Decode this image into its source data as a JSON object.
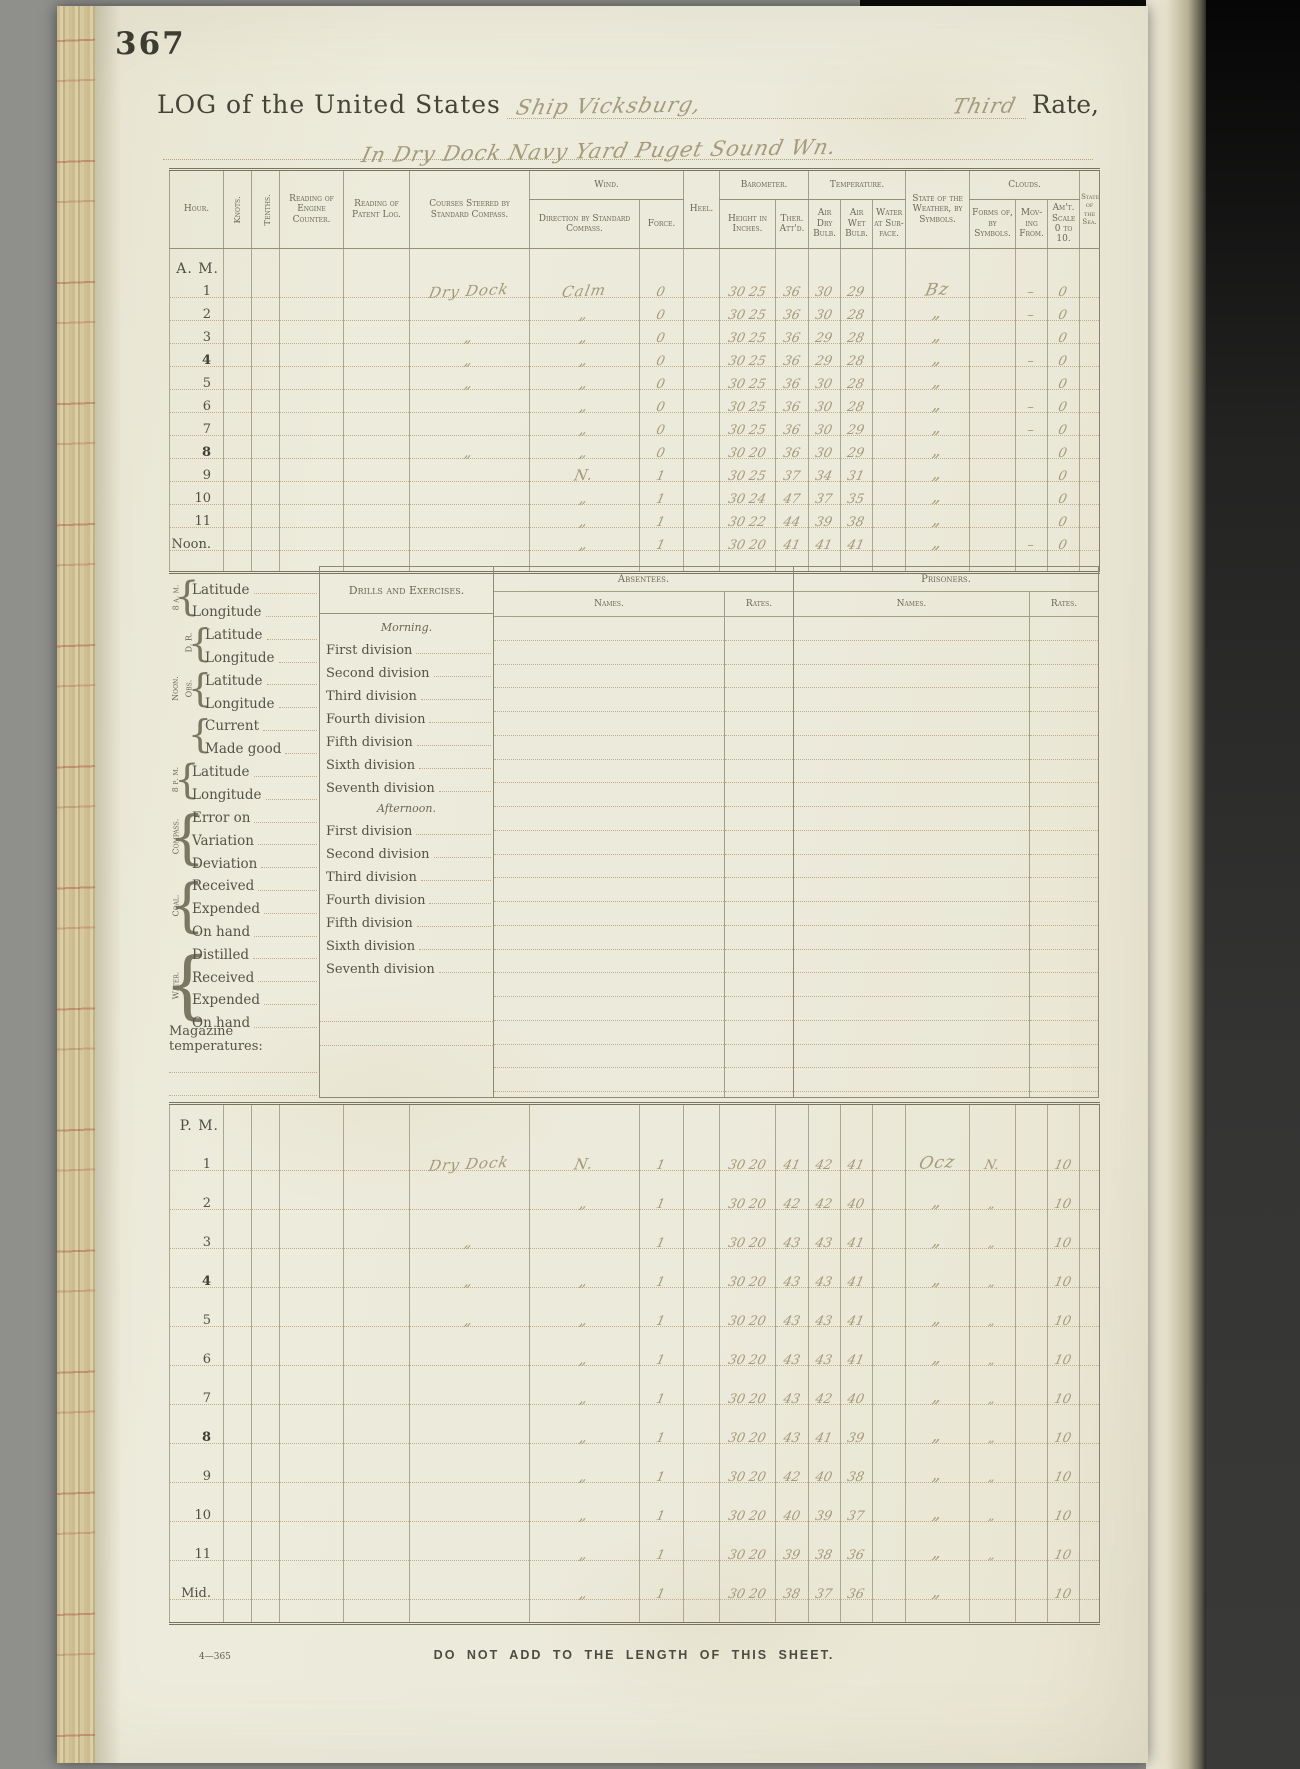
{
  "page": {
    "number": "367"
  },
  "title": {
    "prefix": "LOG of the United States",
    "ship": "Ship Vicksburg,",
    "rate": "Third",
    "suffix": "Rate,",
    "location": "In Dry Dock Navy Yard Puget Sound Wn."
  },
  "columns": {
    "hour": "Hour.",
    "knots": "Knots.",
    "tenths": "Tenths.",
    "engine": "Reading of Engine Counter.",
    "patent": "Reading of Patent Log.",
    "courses": "Courses Steered by Standard Compass.",
    "wind": "Wind.",
    "direction": "Direction by Standard Compass.",
    "force": "Force.",
    "heel": "Heel.",
    "barometer": "Barometer.",
    "height": "Height in Inches.",
    "ther": "Ther. Att'd.",
    "temperature": "Temperature.",
    "dry": "Air Dry Bulb.",
    "wet": "Air Wet Bulb.",
    "water": "Water at Sur-face.",
    "weather": "State of the Weather, by Symbols.",
    "clouds": "Clouds.",
    "forms": "Forms of, by Symbols.",
    "moving": "Mov-ing From.",
    "amount": "Am't. Scale 0 to 10.",
    "sea": "State of the Sea."
  },
  "am": {
    "rows": [
      {
        "type": "label",
        "hour": "A. M."
      },
      {
        "hour": "1",
        "course": "Dry Dock",
        "direction": "Calm",
        "force": "0",
        "bar_height": "30 25",
        "bar_ther": "36",
        "t_dry": "30",
        "t_wet": "29",
        "weather": "Bz",
        "cloud_moving": "–",
        "cloud_amt": "0"
      },
      {
        "hour": "2",
        "direction": "„",
        "force": "0",
        "bar_height": "30 25",
        "bar_ther": "36",
        "t_dry": "30",
        "t_wet": "28",
        "weather": "„",
        "cloud_moving": "–",
        "cloud_amt": "0"
      },
      {
        "hour": "3",
        "course": "„",
        "direction": "„",
        "force": "0",
        "bar_height": "30 25",
        "bar_ther": "36",
        "t_dry": "29",
        "t_wet": "28",
        "weather": "„",
        "cloud_amt": "0"
      },
      {
        "hour": "4",
        "hb": true,
        "course": "„",
        "direction": "„",
        "force": "0",
        "bar_height": "30 25",
        "bar_ther": "36",
        "t_dry": "29",
        "t_wet": "28",
        "weather": "„",
        "cloud_moving": "–",
        "cloud_amt": "0"
      },
      {
        "hour": "5",
        "course": "„",
        "direction": "„",
        "force": "0",
        "bar_height": "30 25",
        "bar_ther": "36",
        "t_dry": "30",
        "t_wet": "28",
        "weather": "„",
        "cloud_amt": "0"
      },
      {
        "hour": "6",
        "direction": "„",
        "force": "0",
        "bar_height": "30 25",
        "bar_ther": "36",
        "t_dry": "30",
        "t_wet": "28",
        "weather": "„",
        "cloud_moving": "–",
        "cloud_amt": "0"
      },
      {
        "hour": "7",
        "direction": "„",
        "force": "0",
        "bar_height": "30 25",
        "bar_ther": "36",
        "t_dry": "30",
        "t_wet": "29",
        "weather": "„",
        "cloud_moving": "–",
        "cloud_amt": "0"
      },
      {
        "hour": "8",
        "hb": true,
        "course": "„",
        "direction": "„",
        "force": "0",
        "bar_height": "30 20",
        "bar_ther": "36",
        "t_dry": "30",
        "t_wet": "29",
        "weather": "„",
        "cloud_amt": "0"
      },
      {
        "hour": "9",
        "direction": "N.",
        "force": "1",
        "bar_height": "30 25",
        "bar_ther": "37",
        "t_dry": "34",
        "t_wet": "31",
        "weather": "„",
        "cloud_amt": "0"
      },
      {
        "hour": "10",
        "direction": "„",
        "force": "1",
        "bar_height": "30 24",
        "bar_ther": "47",
        "t_dry": "37",
        "t_wet": "35",
        "weather": "„",
        "cloud_amt": "0"
      },
      {
        "hour": "11",
        "direction": "„",
        "force": "1",
        "bar_height": "30 22",
        "bar_ther": "44",
        "t_dry": "39",
        "t_wet": "38",
        "weather": "„",
        "cloud_amt": "0"
      },
      {
        "hour": "Noon.",
        "direction": "„",
        "force": "1",
        "bar_height": "30 20",
        "bar_ther": "41",
        "t_dry": "41",
        "t_wet": "41",
        "weather": "„",
        "cloud_moving": "–",
        "cloud_amt": "0"
      },
      {
        "type": "blank"
      }
    ]
  },
  "pm": {
    "rows": [
      {
        "type": "label",
        "hour": "P. M."
      },
      {
        "hour": "1",
        "course": "Dry Dock",
        "direction": "N.",
        "force": "1",
        "bar_height": "30 20",
        "bar_ther": "41",
        "t_dry": "42",
        "t_wet": "41",
        "weather": "Ocz",
        "cloud_forms": "N.",
        "cloud_amt": "10"
      },
      {
        "hour": "2",
        "direction": "„",
        "force": "1",
        "bar_height": "30 20",
        "bar_ther": "42",
        "t_dry": "42",
        "t_wet": "40",
        "weather": "„",
        "cloud_forms": "„",
        "cloud_amt": "10"
      },
      {
        "hour": "3",
        "course": "„",
        "force": "1",
        "bar_height": "30 20",
        "bar_ther": "43",
        "t_dry": "43",
        "t_wet": "41",
        "weather": "„",
        "cloud_forms": "„",
        "cloud_amt": "10"
      },
      {
        "hour": "4",
        "hb": true,
        "course": "„",
        "direction": "„",
        "force": "1",
        "bar_height": "30 20",
        "bar_ther": "43",
        "t_dry": "43",
        "t_wet": "41",
        "weather": "„",
        "cloud_forms": "„",
        "cloud_amt": "10"
      },
      {
        "hour": "5",
        "course": "„",
        "direction": "„",
        "force": "1",
        "bar_height": "30 20",
        "bar_ther": "43",
        "t_dry": "43",
        "t_wet": "41",
        "weather": "„",
        "cloud_forms": "„",
        "cloud_amt": "10"
      },
      {
        "hour": "6",
        "direction": "„",
        "force": "1",
        "bar_height": "30 20",
        "bar_ther": "43",
        "t_dry": "43",
        "t_wet": "41",
        "weather": "„",
        "cloud_forms": "„",
        "cloud_amt": "10"
      },
      {
        "hour": "7",
        "direction": "„",
        "force": "1",
        "bar_height": "30 20",
        "bar_ther": "43",
        "t_dry": "42",
        "t_wet": "40",
        "weather": "„",
        "cloud_forms": "„",
        "cloud_amt": "10"
      },
      {
        "hour": "8",
        "hb": true,
        "direction": "„",
        "force": "1",
        "bar_height": "30 20",
        "bar_ther": "43",
        "t_dry": "41",
        "t_wet": "39",
        "weather": "„",
        "cloud_forms": "„",
        "cloud_amt": "10"
      },
      {
        "hour": "9",
        "direction": "„",
        "force": "1",
        "bar_height": "30 20",
        "bar_ther": "42",
        "t_dry": "40",
        "t_wet": "38",
        "weather": "„",
        "cloud_forms": "„",
        "cloud_amt": "10"
      },
      {
        "hour": "10",
        "direction": "„",
        "force": "1",
        "bar_height": "30 20",
        "bar_ther": "40",
        "t_dry": "39",
        "t_wet": "37",
        "weather": "„",
        "cloud_forms": "„",
        "cloud_amt": "10"
      },
      {
        "hour": "11",
        "direction": "„",
        "force": "1",
        "bar_height": "30 20",
        "bar_ther": "39",
        "t_dry": "38",
        "t_wet": "36",
        "weather": "„",
        "cloud_forms": "„",
        "cloud_amt": "10"
      },
      {
        "hour": "Mid.",
        "direction": "„",
        "force": "1",
        "bar_height": "30 20",
        "bar_ther": "38",
        "t_dry": "37",
        "t_wet": "36",
        "weather": "„",
        "cloud_amt": "10"
      },
      {
        "type": "blank"
      }
    ]
  },
  "nav": {
    "g8am": {
      "side": "8 a. m.",
      "items": [
        "Latitude",
        "Longitude"
      ]
    },
    "noon": {
      "side": "Noon.",
      "dr": {
        "side": "D. R.",
        "items": [
          "Latitude",
          "Longitude"
        ]
      },
      "obs": {
        "side": "Obs.",
        "items": [
          "Latitude",
          "Longitude"
        ]
      },
      "track": {
        "items": [
          "Current",
          "Made good"
        ]
      }
    },
    "g8pm": {
      "side": "8 p. m.",
      "items": [
        "Latitude",
        "Longitude"
      ]
    },
    "compass": {
      "side": "Compass.",
      "items": [
        "Error on",
        "Variation",
        "Deviation"
      ]
    },
    "coal": {
      "side": "Coal.",
      "items": [
        "Received",
        "Expended",
        "On hand"
      ]
    },
    "water": {
      "side": "Water.",
      "items": [
        "Distilled",
        "Received",
        "Expended",
        "On hand"
      ]
    },
    "magazine_label": "Magazine temperatures:"
  },
  "drills": {
    "title": "Drills and Exercises.",
    "morning_label": "Morning.",
    "afternoon_label": "Afternoon.",
    "morning": [
      {
        "label": "First division"
      },
      {
        "label": "Second division"
      },
      {
        "label": "Third division"
      },
      {
        "label": "Fourth division"
      },
      {
        "label": "Fifth division"
      },
      {
        "label": "Sixth division"
      },
      {
        "label": "Seventh division"
      }
    ],
    "afternoon": [
      {
        "label": "First division"
      },
      {
        "label": "Second division"
      },
      {
        "label": "Third division"
      },
      {
        "label": "Fourth division"
      },
      {
        "label": "Fifth division"
      },
      {
        "label": "Sixth division"
      },
      {
        "label": "Seventh division"
      }
    ]
  },
  "absentees": {
    "title": "Absentees.",
    "names_label": "Names.",
    "rates_label": "Rates."
  },
  "prisoners": {
    "title": "Prisoners.",
    "names_label": "Names.",
    "rates_label": "Rates."
  },
  "footer": {
    "form_number": "4—365",
    "note": "DO NOT ADD TO THE LENGTH OF THIS SHEET."
  }
}
